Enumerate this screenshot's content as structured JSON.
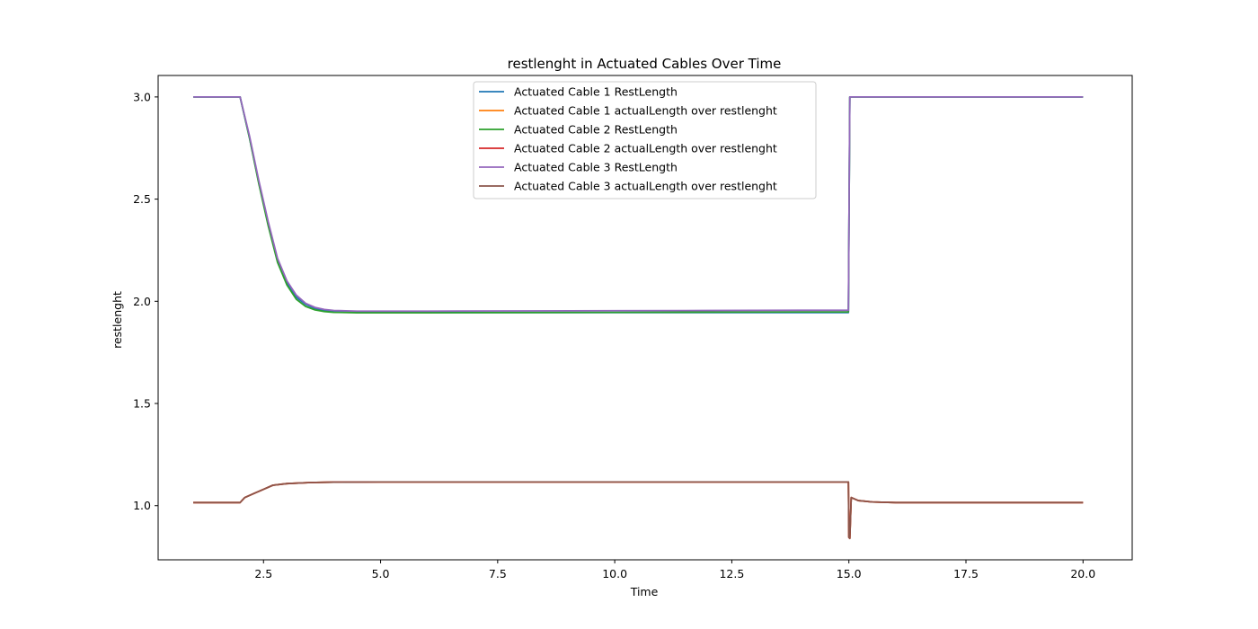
{
  "chart_data": {
    "type": "line",
    "title": "restlenght in Actuated Cables Over Time",
    "xlabel": "Time",
    "ylabel": "restlenght",
    "xlim": [
      0.25,
      21.05
    ],
    "ylim": [
      0.735,
      3.105
    ],
    "xticks": [
      2.5,
      5.0,
      7.5,
      10.0,
      12.5,
      15.0,
      17.5,
      20.0
    ],
    "xtick_labels": [
      "2.5",
      "5.0",
      "7.5",
      "10.0",
      "12.5",
      "15.0",
      "17.5",
      "20.0"
    ],
    "yticks": [
      1.0,
      1.5,
      2.0,
      2.5,
      3.0
    ],
    "ytick_labels": [
      "1.0",
      "1.5",
      "2.0",
      "2.5",
      "3.0"
    ],
    "grid": false,
    "legend_position": "top-center",
    "series": [
      {
        "name": "Actuated Cable 1 RestLength",
        "color": "#1f77b4",
        "x": [
          1.0,
          2.0,
          2.2,
          2.4,
          2.6,
          2.8,
          3.0,
          3.2,
          3.4,
          3.6,
          3.8,
          4.0,
          4.5,
          5.0,
          6.0,
          8.0,
          10.0,
          12.0,
          14.0,
          14.99,
          15.02,
          15.5,
          17.5,
          20.0
        ],
        "y": [
          3.0,
          3.0,
          2.8,
          2.58,
          2.38,
          2.2,
          2.09,
          2.02,
          1.985,
          1.965,
          1.955,
          1.95,
          1.946,
          1.945,
          1.945,
          1.945,
          1.945,
          1.945,
          1.945,
          1.945,
          3.0,
          3.0,
          3.0,
          3.0
        ]
      },
      {
        "name": "Actuated Cable 1 actualLength over restlenght",
        "color": "#ff7f0e",
        "x": [
          1.0,
          2.0,
          2.1,
          2.3,
          2.5,
          2.7,
          3.0,
          3.5,
          4.0,
          5.0,
          7.5,
          10.0,
          12.5,
          14.99,
          15.0,
          15.02,
          15.05,
          15.2,
          15.5,
          16.0,
          17.5,
          20.0
        ],
        "y": [
          1.015,
          1.015,
          1.04,
          1.06,
          1.08,
          1.1,
          1.108,
          1.113,
          1.115,
          1.116,
          1.116,
          1.116,
          1.116,
          1.116,
          0.845,
          0.84,
          1.04,
          1.025,
          1.018,
          1.015,
          1.015,
          1.015
        ]
      },
      {
        "name": "Actuated Cable 2 RestLength",
        "color": "#2ca02c",
        "x": [
          1.0,
          2.0,
          2.2,
          2.4,
          2.6,
          2.8,
          3.0,
          3.2,
          3.4,
          3.6,
          3.8,
          4.0,
          4.5,
          5.0,
          6.0,
          8.0,
          10.0,
          12.0,
          14.0,
          14.99,
          15.02,
          15.5,
          17.5,
          20.0
        ],
        "y": [
          3.0,
          3.0,
          2.8,
          2.575,
          2.37,
          2.19,
          2.08,
          2.01,
          1.975,
          1.958,
          1.95,
          1.946,
          1.944,
          1.944,
          1.944,
          1.945,
          1.946,
          1.947,
          1.948,
          1.948,
          3.0,
          3.0,
          3.0,
          3.0
        ]
      },
      {
        "name": "Actuated Cable 2 actualLength over restlenght",
        "color": "#d62728",
        "x": [
          1.0,
          2.0,
          2.1,
          2.3,
          2.5,
          2.7,
          3.0,
          3.5,
          4.0,
          5.0,
          7.5,
          10.0,
          12.5,
          14.99,
          15.0,
          15.02,
          15.05,
          15.2,
          15.5,
          16.0,
          17.5,
          20.0
        ],
        "y": [
          1.015,
          1.015,
          1.04,
          1.06,
          1.08,
          1.1,
          1.108,
          1.113,
          1.115,
          1.116,
          1.116,
          1.116,
          1.116,
          1.116,
          0.845,
          0.84,
          1.04,
          1.025,
          1.018,
          1.015,
          1.015,
          1.015
        ]
      },
      {
        "name": "Actuated Cable 3 RestLength",
        "color": "#9467bd",
        "x": [
          1.0,
          2.0,
          2.2,
          2.4,
          2.6,
          2.8,
          3.0,
          3.2,
          3.4,
          3.6,
          3.8,
          4.0,
          4.5,
          5.0,
          6.0,
          8.0,
          10.0,
          12.0,
          14.0,
          14.99,
          15.02,
          15.5,
          17.5,
          20.0
        ],
        "y": [
          3.0,
          3.0,
          2.81,
          2.59,
          2.39,
          2.21,
          2.1,
          2.03,
          1.99,
          1.97,
          1.96,
          1.955,
          1.952,
          1.952,
          1.952,
          1.953,
          1.954,
          1.955,
          1.956,
          1.956,
          3.0,
          3.0,
          3.0,
          3.0
        ]
      },
      {
        "name": "Actuated Cable 3 actualLength over restlenght",
        "color": "#8c564b",
        "x": [
          1.0,
          2.0,
          2.1,
          2.3,
          2.5,
          2.7,
          3.0,
          3.5,
          4.0,
          5.0,
          7.5,
          10.0,
          12.5,
          14.99,
          15.0,
          15.02,
          15.05,
          15.2,
          15.5,
          16.0,
          17.5,
          20.0
        ],
        "y": [
          1.015,
          1.015,
          1.04,
          1.06,
          1.08,
          1.1,
          1.108,
          1.113,
          1.115,
          1.116,
          1.116,
          1.116,
          1.116,
          1.116,
          0.845,
          0.84,
          1.04,
          1.025,
          1.018,
          1.015,
          1.015,
          1.015
        ]
      }
    ]
  }
}
